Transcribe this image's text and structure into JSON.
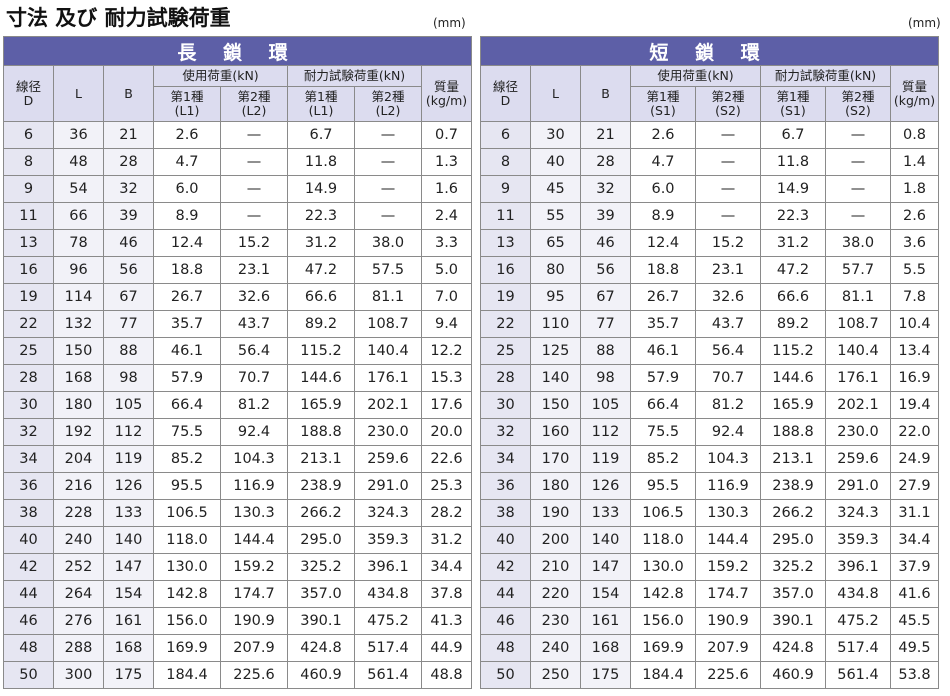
{
  "page": {
    "title": "寸法 及び 耐力試験荷重"
  },
  "tables": [
    {
      "unit": "(mm)",
      "banner": "長 鎖 環",
      "headers": {
        "diameter": "線径\nD",
        "L": "L",
        "B": "B",
        "working_load": "使用荷重(kN)",
        "proof_load": "耐力試験荷重(kN)",
        "weight": "質量\n(kg/m)",
        "class1_working": "第1種\n(L1)",
        "class2_working": "第2種\n(L2)",
        "class1_proof": "第1種\n(L1)",
        "class2_proof": "第2種\n(L2)"
      },
      "rows": [
        [
          "6",
          "36",
          "21",
          "2.6",
          "—",
          "6.7",
          "—",
          "0.7"
        ],
        [
          "8",
          "48",
          "28",
          "4.7",
          "—",
          "11.8",
          "—",
          "1.3"
        ],
        [
          "9",
          "54",
          "32",
          "6.0",
          "—",
          "14.9",
          "—",
          "1.6"
        ],
        [
          "11",
          "66",
          "39",
          "8.9",
          "—",
          "22.3",
          "—",
          "2.4"
        ],
        [
          "13",
          "78",
          "46",
          "12.4",
          "15.2",
          "31.2",
          "38.0",
          "3.3"
        ],
        [
          "16",
          "96",
          "56",
          "18.8",
          "23.1",
          "47.2",
          "57.5",
          "5.0"
        ],
        [
          "19",
          "114",
          "67",
          "26.7",
          "32.6",
          "66.6",
          "81.1",
          "7.0"
        ],
        [
          "22",
          "132",
          "77",
          "35.7",
          "43.7",
          "89.2",
          "108.7",
          "9.4"
        ],
        [
          "25",
          "150",
          "88",
          "46.1",
          "56.4",
          "115.2",
          "140.4",
          "12.2"
        ],
        [
          "28",
          "168",
          "98",
          "57.9",
          "70.7",
          "144.6",
          "176.1",
          "15.3"
        ],
        [
          "30",
          "180",
          "105",
          "66.4",
          "81.2",
          "165.9",
          "202.1",
          "17.6"
        ],
        [
          "32",
          "192",
          "112",
          "75.5",
          "92.4",
          "188.8",
          "230.0",
          "20.0"
        ],
        [
          "34",
          "204",
          "119",
          "85.2",
          "104.3",
          "213.1",
          "259.6",
          "22.6"
        ],
        [
          "36",
          "216",
          "126",
          "95.5",
          "116.9",
          "238.9",
          "291.0",
          "25.3"
        ],
        [
          "38",
          "228",
          "133",
          "106.5",
          "130.3",
          "266.2",
          "324.3",
          "28.2"
        ],
        [
          "40",
          "240",
          "140",
          "118.0",
          "144.4",
          "295.0",
          "359.3",
          "31.2"
        ],
        [
          "42",
          "252",
          "147",
          "130.0",
          "159.2",
          "325.2",
          "396.1",
          "34.4"
        ],
        [
          "44",
          "264",
          "154",
          "142.8",
          "174.7",
          "357.0",
          "434.8",
          "37.8"
        ],
        [
          "46",
          "276",
          "161",
          "156.0",
          "190.9",
          "390.1",
          "475.2",
          "41.3"
        ],
        [
          "48",
          "288",
          "168",
          "169.9",
          "207.9",
          "424.8",
          "517.4",
          "44.9"
        ],
        [
          "50",
          "300",
          "175",
          "184.4",
          "225.6",
          "460.9",
          "561.4",
          "48.8"
        ]
      ]
    },
    {
      "unit": "(mm)",
      "banner": "短 鎖 環",
      "headers": {
        "diameter": "線径\nD",
        "L": "L",
        "B": "B",
        "working_load": "使用荷重(kN)",
        "proof_load": "耐力試験荷重(kN)",
        "weight": "質量\n(kg/m)",
        "class1_working": "第1種\n(S1)",
        "class2_working": "第2種\n(S2)",
        "class1_proof": "第1種\n(S1)",
        "class2_proof": "第2種\n(S2)"
      },
      "rows": [
        [
          "6",
          "30",
          "21",
          "2.6",
          "—",
          "6.7",
          "—",
          "0.8"
        ],
        [
          "8",
          "40",
          "28",
          "4.7",
          "—",
          "11.8",
          "—",
          "1.4"
        ],
        [
          "9",
          "45",
          "32",
          "6.0",
          "—",
          "14.9",
          "—",
          "1.8"
        ],
        [
          "11",
          "55",
          "39",
          "8.9",
          "—",
          "22.3",
          "—",
          "2.6"
        ],
        [
          "13",
          "65",
          "46",
          "12.4",
          "15.2",
          "31.2",
          "38.0",
          "3.6"
        ],
        [
          "16",
          "80",
          "56",
          "18.8",
          "23.1",
          "47.2",
          "57.7",
          "5.5"
        ],
        [
          "19",
          "95",
          "67",
          "26.7",
          "32.6",
          "66.6",
          "81.1",
          "7.8"
        ],
        [
          "22",
          "110",
          "77",
          "35.7",
          "43.7",
          "89.2",
          "108.7",
          "10.4"
        ],
        [
          "25",
          "125",
          "88",
          "46.1",
          "56.4",
          "115.2",
          "140.4",
          "13.4"
        ],
        [
          "28",
          "140",
          "98",
          "57.9",
          "70.7",
          "144.6",
          "176.1",
          "16.9"
        ],
        [
          "30",
          "150",
          "105",
          "66.4",
          "81.2",
          "165.9",
          "202.1",
          "19.4"
        ],
        [
          "32",
          "160",
          "112",
          "75.5",
          "92.4",
          "188.8",
          "230.0",
          "22.0"
        ],
        [
          "34",
          "170",
          "119",
          "85.2",
          "104.3",
          "213.1",
          "259.6",
          "24.9"
        ],
        [
          "36",
          "180",
          "126",
          "95.5",
          "116.9",
          "238.9",
          "291.0",
          "27.9"
        ],
        [
          "38",
          "190",
          "133",
          "106.5",
          "130.3",
          "266.2",
          "324.3",
          "31.1"
        ],
        [
          "40",
          "200",
          "140",
          "118.0",
          "144.4",
          "295.0",
          "359.3",
          "34.4"
        ],
        [
          "42",
          "210",
          "147",
          "130.0",
          "159.2",
          "325.2",
          "396.1",
          "37.9"
        ],
        [
          "44",
          "220",
          "154",
          "142.8",
          "174.7",
          "357.0",
          "434.8",
          "41.6"
        ],
        [
          "46",
          "230",
          "161",
          "156.0",
          "190.9",
          "390.1",
          "475.2",
          "45.5"
        ],
        [
          "48",
          "240",
          "168",
          "169.9",
          "207.9",
          "424.8",
          "517.4",
          "49.5"
        ],
        [
          "50",
          "250",
          "175",
          "184.4",
          "225.6",
          "460.9",
          "561.4",
          "53.8"
        ]
      ]
    }
  ]
}
